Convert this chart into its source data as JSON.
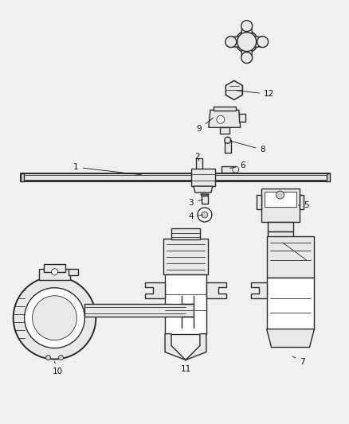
{
  "background_color": "#f0f0f0",
  "line_color": "#2a2a2a",
  "fill_light": "#e8e8e8",
  "fill_mid": "#d0d0d0",
  "fill_white": "#ffffff",
  "figsize": [
    4.38,
    5.33
  ],
  "dpi": 100,
  "label_fs": 7.5,
  "label_color": "#111111"
}
